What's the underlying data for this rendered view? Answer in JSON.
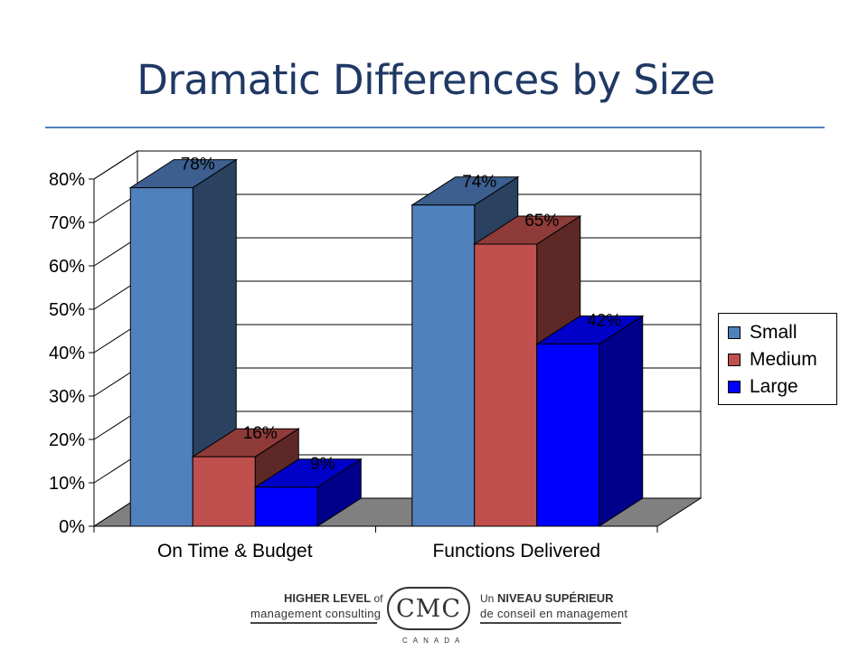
{
  "slide": {
    "title": "Dramatic Differences by Size"
  },
  "chart_data": {
    "type": "bar",
    "title": "",
    "xlabel": "",
    "ylabel": "",
    "ylim": [
      0,
      80
    ],
    "yticks": [
      "0%",
      "10%",
      "20%",
      "30%",
      "40%",
      "50%",
      "60%",
      "70%",
      "80%"
    ],
    "grid": true,
    "three_d": true,
    "legend_position": "right",
    "categories": [
      "On Time & Budget",
      "Functions Delivered"
    ],
    "series": [
      {
        "name": "Small",
        "values": [
          78,
          74
        ],
        "labels": [
          "78%",
          "74%"
        ],
        "color": "#4f81bd",
        "side_color": "#2a4160",
        "top_color": "#3c5f8f"
      },
      {
        "name": "Medium",
        "values": [
          16,
          65
        ],
        "labels": [
          "16%",
          "65%"
        ],
        "color": "#c0504d",
        "side_color": "#5e2827",
        "top_color": "#8e3b39"
      },
      {
        "name": "Large",
        "values": [
          9,
          42
        ],
        "labels": [
          "9%",
          "42%"
        ],
        "color": "#0000ff",
        "side_color": "#00008b",
        "top_color": "#0000c8"
      }
    ]
  },
  "footer": {
    "en_top": "HIGHER LEVEL",
    "en_of": "of",
    "en_bottom": "management consulting",
    "logo_text": "CMC",
    "logo_sub": "CANADA",
    "fr_un": "Un",
    "fr_top": "NIVEAU SUPÉRIEUR",
    "fr_bottom": "de conseil en management"
  }
}
